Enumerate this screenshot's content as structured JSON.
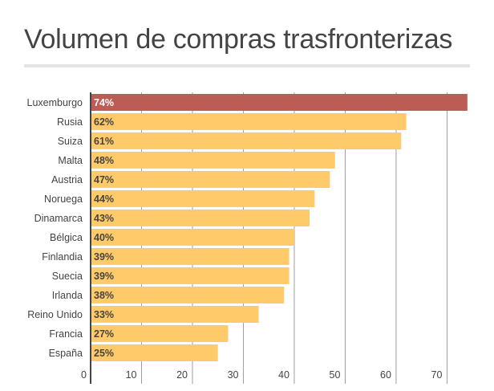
{
  "chart_data": {
    "type": "bar",
    "orientation": "horizontal",
    "title": "Volumen de compras trasfronterizas",
    "categories": [
      "Luxemburgo",
      "Rusia",
      "Suiza",
      "Malta",
      "Austria",
      "Noruega",
      "Dinamarca",
      "Bélgica",
      "Finlandia",
      "Suecia",
      "Irlanda",
      "Reino Unido",
      "Francia",
      "España"
    ],
    "values": [
      74,
      62,
      61,
      48,
      47,
      44,
      43,
      40,
      39,
      39,
      38,
      33,
      27,
      25
    ],
    "data_labels": [
      "74%",
      "62%",
      "61%",
      "48%",
      "47%",
      "44%",
      "43%",
      "40%",
      "39%",
      "39%",
      "38%",
      "33%",
      "27%",
      "25%"
    ],
    "highlight_index": 0,
    "xlim": [
      0,
      74.5
    ],
    "x_ticks": [
      0,
      10,
      20,
      30,
      40,
      50,
      60,
      70
    ],
    "grid": true,
    "colors": {
      "bar": "#ffca69",
      "highlight": "#bb5c55",
      "grid": "#9e9e9e",
      "axis": "#444444",
      "text": "#444444"
    }
  }
}
